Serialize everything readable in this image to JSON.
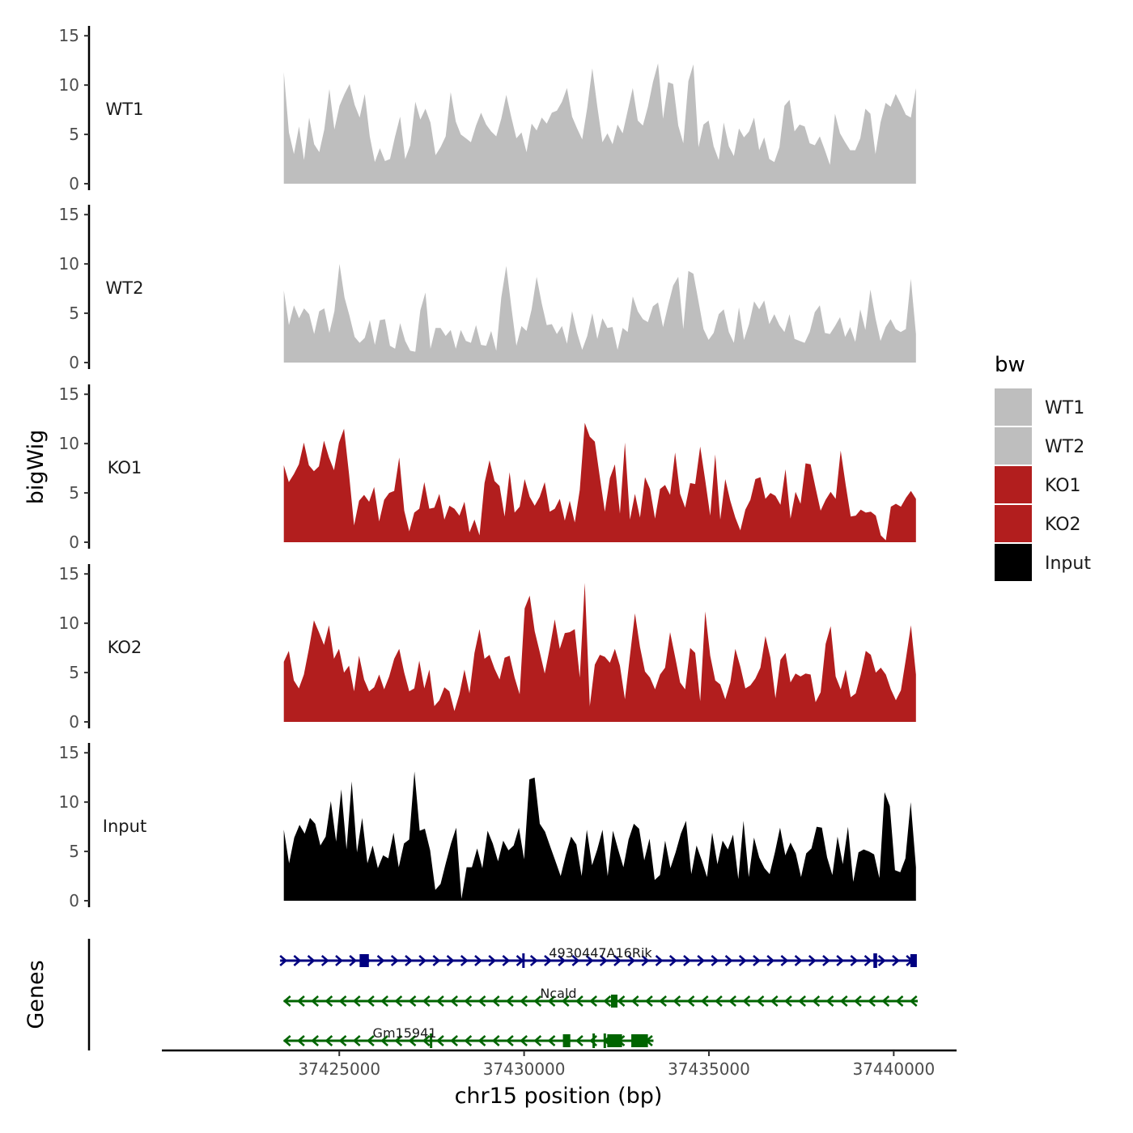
{
  "chart_data": {
    "type": "area",
    "x_range": [
      37423500,
      37440600
    ],
    "xlim": [
      37420200,
      37441700
    ],
    "x_ticks": [
      37425000,
      37430000,
      37435000,
      37440000
    ],
    "x_tick_labels": [
      "37425000",
      "37430000",
      "37435000",
      "37440000"
    ],
    "xlabel": "chr15 position (bp)",
    "ylabel": "bigWig",
    "ylim": [
      0,
      16
    ],
    "y_ticks": [
      0,
      5,
      10,
      15
    ],
    "y_tick_labels": [
      "0",
      "5",
      "10",
      "15"
    ],
    "tracks": [
      {
        "name": "WT1",
        "color": "#bebebe",
        "values": [
          11.3,
          5.2,
          3.0,
          5.8,
          2.4,
          6.7,
          4.0,
          3.2,
          5.5,
          9.6,
          5.5,
          7.9,
          9.1,
          10.1,
          8.0,
          6.7,
          9.1,
          4.8,
          2.2,
          3.6,
          2.3,
          2.5,
          4.8,
          6.8,
          2.5,
          3.9,
          8.3,
          6.5,
          7.6,
          6.2,
          2.9,
          3.7,
          4.8,
          9.3,
          6.3,
          5.0,
          4.6,
          4.2,
          5.9,
          7.2,
          6.0,
          5.3,
          4.8,
          6.6,
          9.0,
          6.7,
          4.6,
          5.2,
          3.2,
          6.1,
          5.4,
          6.7,
          6.1,
          7.2,
          7.4,
          8.3,
          9.7,
          6.8,
          5.6,
          4.5,
          7.7,
          11.7,
          7.8,
          4.2,
          5.1,
          4.0,
          6.0,
          5.1,
          7.4,
          9.7,
          6.4,
          5.9,
          7.8,
          10.3,
          12.2,
          6.6,
          10.3,
          10.1,
          5.9,
          4.1,
          10.4,
          12.1,
          3.7,
          6.0,
          6.4,
          3.8,
          2.4,
          6.2,
          3.8,
          2.8,
          5.6,
          4.7,
          5.3,
          6.7,
          3.4,
          4.7,
          2.5,
          2.2,
          3.7,
          7.9,
          8.5,
          5.3,
          6.0,
          5.8,
          4.1,
          3.9,
          4.8,
          3.4,
          1.9,
          7.1,
          5.1,
          4.2,
          3.4,
          3.4,
          4.6,
          7.6,
          7.1,
          3.0,
          6.2,
          8.2,
          7.8,
          9.1,
          8.1,
          7.0,
          6.7,
          9.7
        ]
      },
      {
        "name": "WT2",
        "color": "#bebebe",
        "values": [
          7.3,
          3.8,
          5.8,
          4.5,
          5.5,
          4.9,
          2.9,
          5.2,
          5.5,
          3.0,
          5.2,
          10.0,
          6.6,
          4.7,
          2.6,
          2.0,
          2.5,
          4.3,
          1.8,
          4.3,
          4.4,
          1.7,
          1.4,
          4.0,
          2.2,
          1.2,
          1.1,
          5.3,
          7.1,
          1.4,
          3.5,
          3.5,
          2.7,
          3.3,
          1.4,
          3.3,
          2.2,
          2.0,
          3.8,
          1.8,
          1.7,
          3.2,
          1.2,
          6.6,
          9.8,
          5.6,
          1.7,
          3.7,
          3.2,
          5.4,
          8.7,
          6.0,
          3.8,
          3.9,
          2.9,
          3.7,
          1.9,
          5.2,
          3.0,
          1.3,
          2.7,
          5.0,
          2.4,
          4.5,
          3.5,
          3.6,
          1.3,
          3.5,
          3.1,
          6.7,
          5.2,
          4.4,
          4.1,
          5.7,
          6.1,
          3.6,
          5.8,
          7.8,
          8.7,
          3.4,
          9.3,
          9.0,
          6.2,
          3.4,
          2.3,
          3.0,
          4.9,
          5.4,
          3.1,
          2.0,
          5.6,
          2.3,
          3.9,
          6.2,
          5.4,
          6.3,
          3.9,
          4.9,
          3.8,
          3.1,
          4.9,
          2.4,
          2.2,
          2.0,
          3.1,
          5.1,
          5.8,
          3.0,
          2.9,
          3.7,
          4.6,
          2.6,
          3.6,
          2.1,
          5.4,
          3.3,
          7.4,
          4.5,
          2.2,
          3.6,
          4.4,
          3.4,
          3.1,
          3.4,
          8.5,
          2.9
        ]
      },
      {
        "name": "KO1",
        "color": "#b21e1e",
        "values": [
          7.8,
          6.1,
          6.9,
          7.9,
          10.1,
          7.8,
          7.2,
          7.7,
          10.3,
          8.6,
          7.3,
          10.1,
          11.5,
          6.9,
          1.7,
          4.2,
          4.8,
          4.1,
          5.6,
          2.1,
          4.3,
          5.0,
          5.2,
          8.6,
          3.2,
          1.1,
          3.0,
          3.4,
          6.1,
          3.4,
          3.5,
          4.9,
          2.3,
          3.7,
          3.4,
          2.7,
          4.1,
          1.0,
          2.3,
          0.7,
          6.0,
          8.3,
          6.2,
          5.7,
          2.6,
          7.1,
          3.0,
          3.6,
          6.4,
          4.6,
          3.7,
          4.6,
          6.1,
          3.1,
          3.4,
          4.4,
          2.2,
          4.2,
          2.0,
          5.3,
          12.1,
          10.7,
          10.2,
          6.6,
          3.1,
          6.5,
          7.9,
          2.9,
          10.1,
          2.3,
          4.9,
          2.5,
          6.6,
          5.4,
          2.4,
          5.4,
          5.8,
          4.8,
          9.1,
          4.9,
          3.5,
          6.0,
          5.9,
          9.7,
          6.3,
          2.7,
          8.9,
          2.3,
          6.4,
          4.2,
          2.5,
          1.2,
          3.3,
          4.3,
          6.4,
          6.6,
          4.4,
          5.0,
          4.7,
          3.8,
          7.4,
          2.4,
          5.1,
          3.9,
          8.0,
          7.9,
          5.5,
          3.2,
          4.3,
          5.1,
          4.4,
          9.3,
          5.8,
          2.6,
          2.7,
          3.3,
          3.0,
          3.1,
          2.7,
          0.7,
          0.2,
          3.6,
          3.9,
          3.6,
          4.5,
          5.2,
          4.4
        ]
      },
      {
        "name": "KO2",
        "color": "#b21e1e",
        "values": [
          6.1,
          7.2,
          4.2,
          3.4,
          4.8,
          7.4,
          10.3,
          9.1,
          7.8,
          9.8,
          6.4,
          7.4,
          5.0,
          5.7,
          3.1,
          6.7,
          4.3,
          3.1,
          3.5,
          4.8,
          3.3,
          4.6,
          6.4,
          7.4,
          5.0,
          3.1,
          3.4,
          6.2,
          3.4,
          5.3,
          1.6,
          2.2,
          3.5,
          3.1,
          1.1,
          2.8,
          5.3,
          2.9,
          7.0,
          9.4,
          6.4,
          6.8,
          5.4,
          4.3,
          6.5,
          6.7,
          4.5,
          2.8,
          11.5,
          12.8,
          9.2,
          7.1,
          4.9,
          7.5,
          10.4,
          7.4,
          9.0,
          9.1,
          9.4,
          4.5,
          14.1,
          1.6,
          5.8,
          6.8,
          6.6,
          6.0,
          7.4,
          5.7,
          2.3,
          6.7,
          11.0,
          7.6,
          5.1,
          4.5,
          3.3,
          4.8,
          5.5,
          9.1,
          6.6,
          4.0,
          3.3,
          7.5,
          7.0,
          2.1,
          11.2,
          6.7,
          4.2,
          3.8,
          2.3,
          4.0,
          7.4,
          5.6,
          3.4,
          3.7,
          4.4,
          5.5,
          8.7,
          6.5,
          2.4,
          6.3,
          7.0,
          4.0,
          4.9,
          4.6,
          4.9,
          4.8,
          2.0,
          3.0,
          7.9,
          9.7,
          4.6,
          3.3,
          5.3,
          2.5,
          2.9,
          4.8,
          7.2,
          6.8,
          5.0,
          5.5,
          4.8,
          3.3,
          2.2,
          3.2,
          6.4,
          9.8,
          4.8
        ]
      },
      {
        "name": "Input",
        "color": "#000000",
        "values": [
          7.2,
          3.8,
          6.4,
          7.7,
          6.8,
          8.4,
          7.8,
          5.6,
          6.5,
          10.1,
          6.0,
          11.3,
          5.2,
          12.1,
          4.9,
          8.4,
          3.8,
          5.6,
          3.3,
          4.6,
          4.3,
          6.9,
          3.4,
          5.8,
          6.2,
          13.1,
          7.1,
          7.3,
          5.1,
          1.1,
          1.7,
          3.8,
          5.8,
          7.4,
          0.2,
          3.4,
          3.4,
          5.3,
          3.3,
          7.1,
          5.8,
          4.0,
          6.1,
          5.1,
          5.6,
          7.4,
          4.2,
          12.3,
          12.5,
          7.8,
          7.0,
          5.5,
          4.0,
          2.5,
          4.7,
          6.5,
          5.7,
          2.5,
          7.2,
          3.6,
          5.2,
          7.2,
          2.5,
          7.1,
          5.2,
          3.4,
          6.2,
          7.8,
          7.3,
          4.1,
          6.3,
          2.1,
          2.6,
          6.1,
          3.3,
          4.9,
          6.8,
          8.1,
          2.7,
          5.6,
          4.1,
          2.4,
          6.9,
          3.7,
          6.1,
          5.2,
          6.7,
          2.2,
          8.1,
          2.4,
          6.4,
          4.4,
          3.3,
          2.7,
          4.9,
          7.4,
          4.6,
          5.9,
          4.8,
          2.4,
          4.8,
          5.3,
          7.5,
          7.4,
          4.4,
          2.6,
          6.5,
          3.7,
          7.5,
          1.9,
          4.9,
          5.2,
          5.0,
          4.7,
          2.3,
          11.0,
          9.6,
          3.1,
          2.9,
          4.3,
          10.0,
          3.4
        ]
      }
    ],
    "genes_label": "Genes",
    "genes": [
      {
        "name": "4930447A16Rik",
        "strand": "+",
        "color": "#000080",
        "start": 37423400,
        "end": 37440600,
        "exons": [
          [
            37425550,
            37425800,
            "big"
          ],
          [
            37429950,
            37430000,
            "thin"
          ],
          [
            37439450,
            37439550,
            "thin"
          ],
          [
            37440450,
            37440600,
            "big"
          ]
        ]
      },
      {
        "name": "Ncald",
        "strand": "-",
        "color": "#006400",
        "start": 37423500,
        "end": 37440650,
        "exons": [
          [
            37432350,
            37432450,
            "mid"
          ]
        ]
      },
      {
        "name": "Gm15941",
        "strand": "-",
        "color": "#006400",
        "start": 37423500,
        "end": 37433500,
        "exons": [
          [
            37427450,
            37427500,
            "thin"
          ],
          [
            37431050,
            37431250,
            "mid"
          ],
          [
            37431850,
            37431900,
            "thin"
          ],
          [
            37432150,
            37432200,
            "thin"
          ],
          [
            37432250,
            37432650,
            "big"
          ],
          [
            37432900,
            37433350,
            "big"
          ]
        ]
      }
    ],
    "legend": {
      "title": "bw",
      "position": "right",
      "items": [
        {
          "label": "WT1",
          "color": "#bebebe"
        },
        {
          "label": "WT2",
          "color": "#bebebe"
        },
        {
          "label": "KO1",
          "color": "#b21e1e"
        },
        {
          "label": "KO2",
          "color": "#b21e1e"
        },
        {
          "label": "Input",
          "color": "#000000"
        }
      ]
    }
  }
}
